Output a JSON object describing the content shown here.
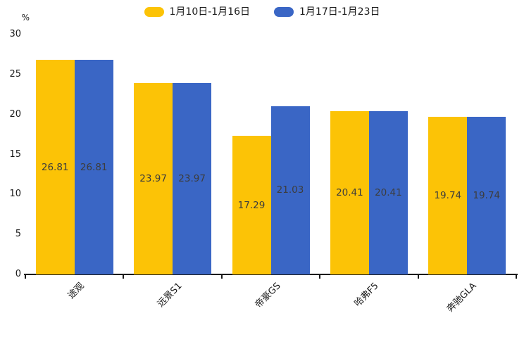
{
  "chart_data": {
    "type": "bar",
    "title": "",
    "categories": [
      "途观",
      "远景S1",
      "帝豪GS",
      "哈弗F5",
      "奔驰GLA"
    ],
    "series": [
      {
        "name": "1月10日-1月16日",
        "color": "#FCC306",
        "values": [
          26.81,
          23.97,
          17.29,
          20.41,
          19.74
        ]
      },
      {
        "name": "1月17日-1月23日",
        "color": "#3A66C5",
        "values": [
          26.81,
          23.97,
          21.03,
          20.41,
          19.74
        ]
      }
    ],
    "value_labels": [
      [
        "26.81",
        "23.97",
        "17.29",
        "20.41",
        "19.74"
      ],
      [
        "26.81",
        "23.97",
        "21.03",
        "20.41",
        "19.74"
      ]
    ],
    "xlabel": "",
    "ylabel": "%",
    "ylim": [
      0,
      30
    ],
    "yticks": [
      "0",
      "5",
      "10",
      "15",
      "20",
      "25",
      "30"
    ],
    "grid": false,
    "legend_position": "top-center",
    "value_label_position": "inside-center",
    "xtick_rotation": 45,
    "axis_color": "#1a1a1a",
    "background_color": "#ffffff"
  }
}
